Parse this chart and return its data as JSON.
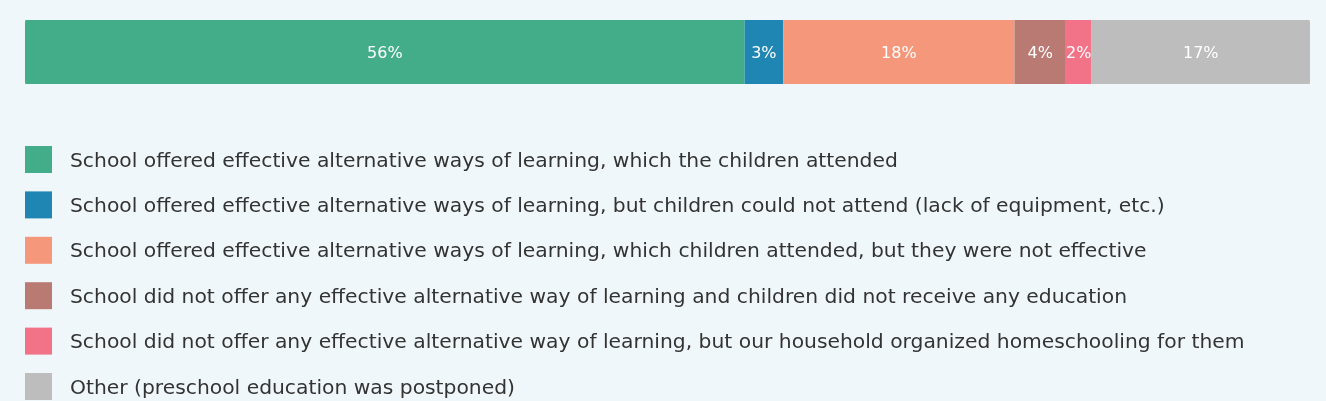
{
  "chart_data": {
    "type": "bar",
    "orientation": "horizontal",
    "stacked": true,
    "categories": [
      null
    ],
    "xlim": [
      0,
      100
    ],
    "legend": "bottom",
    "series": [
      {
        "name": "School offered effective alternative ways of learning, which the children attended",
        "color": "#43ac88",
        "values": [
          56
        ],
        "value_labels": [
          "56%"
        ]
      },
      {
        "name": "School offered effective alternative ways of learning, but children could not attend (lack of equipment, etc.)",
        "color": "#1f86b4",
        "values": [
          3
        ],
        "value_labels": [
          "3%"
        ]
      },
      {
        "name": "School offered effective alternative ways of learning, which children attended, but they were not effective",
        "color": "#f5977a",
        "values": [
          18
        ],
        "value_labels": [
          "18%"
        ]
      },
      {
        "name": "School did not offer any effective alternative way of learning and children did not receive any education",
        "color": "#b87a72",
        "values": [
          4
        ],
        "value_labels": [
          "4%"
        ]
      },
      {
        "name": "School did not offer any effective alternative way of learning, but our household organized homeschooling for them",
        "color": "#f27387",
        "values": [
          2
        ],
        "value_labels": [
          "2%"
        ]
      },
      {
        "name": "Other (preschool education was postponed)",
        "color": "#bdbdbd",
        "values": [
          17
        ],
        "value_labels": [
          "17%"
        ]
      }
    ]
  }
}
